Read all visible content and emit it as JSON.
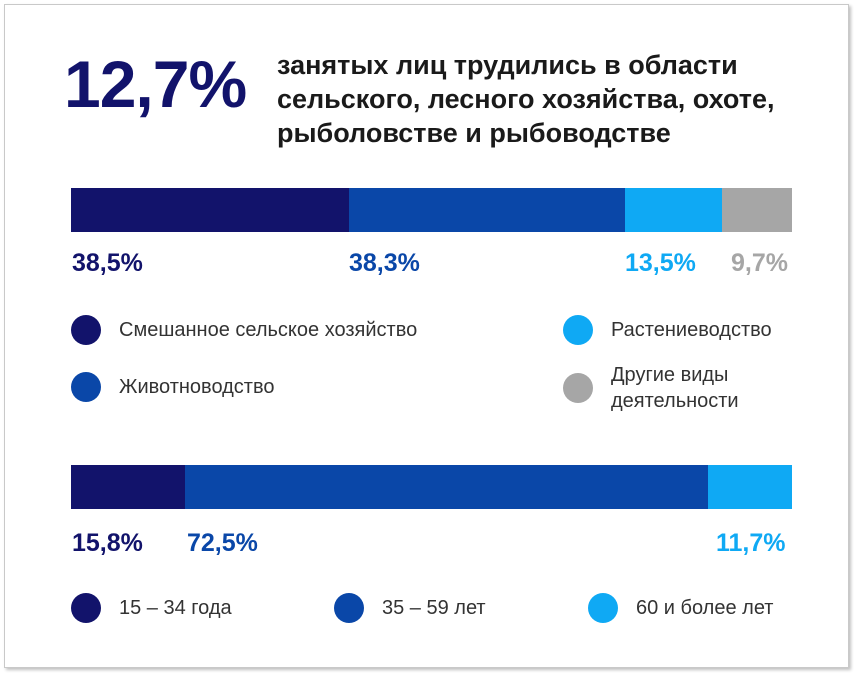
{
  "headline": {
    "big_value": "12,7%",
    "caption": "занятых лиц трудились в области сельского, лесного хозяйства, охоте, рыболовстве и рыбоводстве"
  },
  "chart_data": [
    {
      "type": "bar",
      "stacked": true,
      "orientation": "horizontal",
      "series": [
        {
          "name": "Смешанное сельское хозяйство",
          "value": 38.5,
          "label": "38,5%",
          "color": "#12136b"
        },
        {
          "name": "Животноводство",
          "value": 38.3,
          "label": "38,3%",
          "color": "#0a47a8"
        },
        {
          "name": "Растениеводство",
          "value": 13.5,
          "label": "13,5%",
          "color": "#0fa9f4"
        },
        {
          "name": "Другие виды деятельности",
          "value": 9.7,
          "label": "9,7%",
          "color": "#a6a6a6"
        }
      ],
      "legend": [
        {
          "label": "Смешанное сельское хозяйство",
          "color": "#12136b"
        },
        {
          "label": "Животноводство",
          "color": "#0a47a8"
        },
        {
          "label": "Растениеводство",
          "color": "#0fa9f4"
        },
        {
          "label": "Другие виды деятельности",
          "color": "#a6a6a6"
        }
      ]
    },
    {
      "type": "bar",
      "stacked": true,
      "orientation": "horizontal",
      "series": [
        {
          "name": "15 – 34 года",
          "value": 15.8,
          "label": "15,8%",
          "color": "#12136b"
        },
        {
          "name": "35 – 59 лет",
          "value": 72.5,
          "label": "72,5%",
          "color": "#0a47a8"
        },
        {
          "name": "60 и более лет",
          "value": 11.7,
          "label": "11,7%",
          "color": "#0fa9f4"
        }
      ],
      "legend": [
        {
          "label": "15 – 34 года",
          "color": "#12136b"
        },
        {
          "label": "35 – 59 лет",
          "color": "#0a47a8"
        },
        {
          "label": "60 и более лет",
          "color": "#0fa9f4"
        }
      ]
    }
  ]
}
